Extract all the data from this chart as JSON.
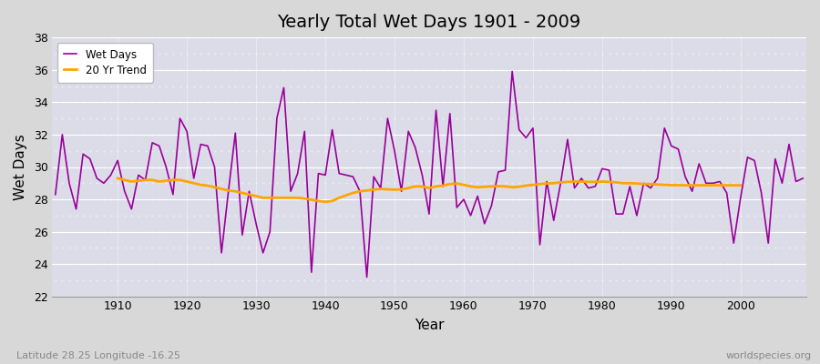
{
  "title": "Yearly Total Wet Days 1901 - 2009",
  "xlabel": "Year",
  "ylabel": "Wet Days",
  "subtitle_left": "Latitude 28.25 Longitude -16.25",
  "subtitle_right": "worldspecies.org",
  "ylim": [
    22,
    38
  ],
  "yticks": [
    22,
    24,
    26,
    28,
    30,
    32,
    34,
    36,
    38
  ],
  "xticks": [
    1910,
    1920,
    1930,
    1940,
    1950,
    1960,
    1970,
    1980,
    1990,
    2000
  ],
  "wet_days_color": "#990099",
  "trend_color": "#FFA500",
  "fig_bg_color": "#D8D8D8",
  "plot_bg_color": "#DCDCE8",
  "legend_wet": "Wet Days",
  "legend_trend": "20 Yr Trend",
  "years": [
    1901,
    1902,
    1903,
    1904,
    1905,
    1906,
    1907,
    1908,
    1909,
    1910,
    1911,
    1912,
    1913,
    1914,
    1915,
    1916,
    1917,
    1918,
    1919,
    1920,
    1921,
    1922,
    1923,
    1924,
    1925,
    1926,
    1927,
    1928,
    1929,
    1930,
    1931,
    1932,
    1933,
    1934,
    1935,
    1936,
    1937,
    1938,
    1939,
    1940,
    1941,
    1942,
    1943,
    1944,
    1945,
    1946,
    1947,
    1948,
    1949,
    1950,
    1951,
    1952,
    1953,
    1954,
    1955,
    1956,
    1957,
    1958,
    1959,
    1960,
    1961,
    1962,
    1963,
    1964,
    1965,
    1966,
    1967,
    1968,
    1969,
    1970,
    1971,
    1972,
    1973,
    1974,
    1975,
    1976,
    1977,
    1978,
    1979,
    1980,
    1981,
    1982,
    1983,
    1984,
    1985,
    1986,
    1987,
    1988,
    1989,
    1990,
    1991,
    1992,
    1993,
    1994,
    1995,
    1996,
    1997,
    1998,
    1999,
    2000,
    2001,
    2002,
    2003,
    2004,
    2005,
    2006,
    2007,
    2008,
    2009
  ],
  "wet_days": [
    28.3,
    32.0,
    29.0,
    27.4,
    30.8,
    30.5,
    29.3,
    29.0,
    29.5,
    30.4,
    28.5,
    27.4,
    29.5,
    29.2,
    31.5,
    31.3,
    30.0,
    28.3,
    33.0,
    32.2,
    29.3,
    31.4,
    31.3,
    30.0,
    24.7,
    28.5,
    32.1,
    25.8,
    28.5,
    26.5,
    24.7,
    26.0,
    33.0,
    34.9,
    28.5,
    29.6,
    32.2,
    23.5,
    29.6,
    29.5,
    32.3,
    29.6,
    29.5,
    29.4,
    28.5,
    23.2,
    29.4,
    28.7,
    33.0,
    31.0,
    28.5,
    32.2,
    31.2,
    29.5,
    27.1,
    33.5,
    28.8,
    33.3,
    27.5,
    28.0,
    27.0,
    28.2,
    26.5,
    27.6,
    29.7,
    29.8,
    35.9,
    32.3,
    31.8,
    32.4,
    25.2,
    29.1,
    26.7,
    29.0,
    31.7,
    28.7,
    29.3,
    28.7,
    28.8,
    29.9,
    29.8,
    27.1,
    27.1,
    28.8,
    27.0,
    29.0,
    28.7,
    29.3,
    32.4,
    31.3,
    31.1,
    29.4,
    28.5,
    30.2,
    29.0,
    29.0,
    29.1,
    28.4,
    25.3,
    28.1,
    30.6,
    30.4,
    28.4,
    25.3,
    30.5,
    29.0,
    31.4,
    29.1,
    29.3
  ],
  "trend": [
    null,
    null,
    null,
    null,
    null,
    null,
    null,
    null,
    null,
    29.3,
    29.2,
    29.1,
    29.15,
    29.2,
    29.2,
    29.1,
    29.15,
    29.2,
    29.2,
    29.1,
    29.0,
    28.9,
    28.85,
    28.75,
    28.65,
    28.55,
    28.5,
    28.4,
    28.3,
    28.2,
    28.1,
    28.1,
    28.1,
    28.1,
    28.1,
    28.1,
    28.05,
    27.98,
    27.9,
    27.85,
    27.9,
    28.1,
    28.25,
    28.4,
    28.5,
    28.55,
    28.6,
    28.65,
    28.62,
    28.6,
    28.62,
    28.7,
    28.8,
    28.8,
    28.7,
    28.8,
    28.85,
    28.95,
    28.98,
    28.9,
    28.8,
    28.75,
    28.78,
    28.8,
    28.82,
    28.8,
    28.75,
    28.78,
    28.85,
    28.9,
    28.95,
    28.98,
    29.0,
    29.05,
    29.08,
    29.1,
    29.1,
    29.08,
    29.08,
    29.1,
    29.08,
    29.05,
    29.0,
    29.0,
    28.98,
    28.95,
    28.95,
    28.92,
    28.9,
    28.88,
    28.88,
    28.87,
    28.87,
    28.87,
    28.87,
    28.87,
    28.87,
    28.87,
    28.87,
    28.87,
    null,
    null,
    null,
    null,
    null,
    null,
    null,
    null,
    null
  ]
}
